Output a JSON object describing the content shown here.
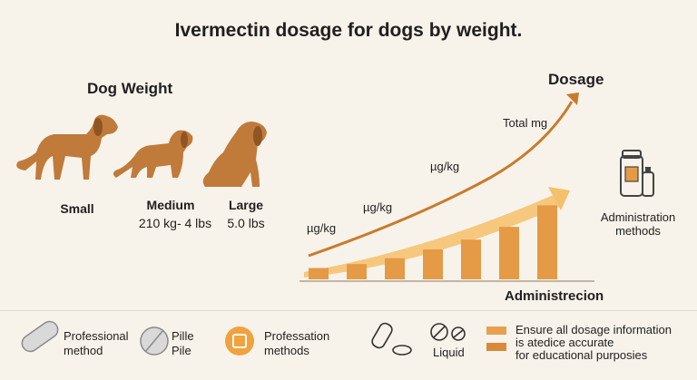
{
  "title": "Ivermectin dosage for dogs by weight.",
  "dog_weight": {
    "heading": "Dog Weight",
    "sizes": [
      {
        "name": "Small",
        "weight": ""
      },
      {
        "name": "Medium",
        "weight": "210 kg- 4 lbs"
      },
      {
        "name": "Large",
        "weight": "5.0 lbs"
      }
    ]
  },
  "chart": {
    "dosage_label": "Dosage",
    "axis_label": "Administrecion",
    "curve_labels": [
      "µg/kg",
      "µg/kg",
      "µg/kg",
      "Total mg"
    ],
    "bar_levels": [
      0.06,
      0.1,
      0.16,
      0.25,
      0.35,
      0.48,
      0.7
    ],
    "colors": {
      "curve": "#c97b2c",
      "bar": "#e59a45",
      "band": "#f4c06b"
    }
  },
  "administration": {
    "label_line1": "Administration",
    "label_line2": "methods"
  },
  "legend": {
    "professional": {
      "line1": "Professional",
      "line2": "method"
    },
    "pille": {
      "line1": "Pille",
      "line2": "Pile"
    },
    "professation": {
      "line1": "Professation",
      "line2": "methods"
    },
    "liquid": "Liquid",
    "note": [
      "Ensure all dosage information",
      "is atedice accurate",
      "for educational purposies"
    ]
  }
}
